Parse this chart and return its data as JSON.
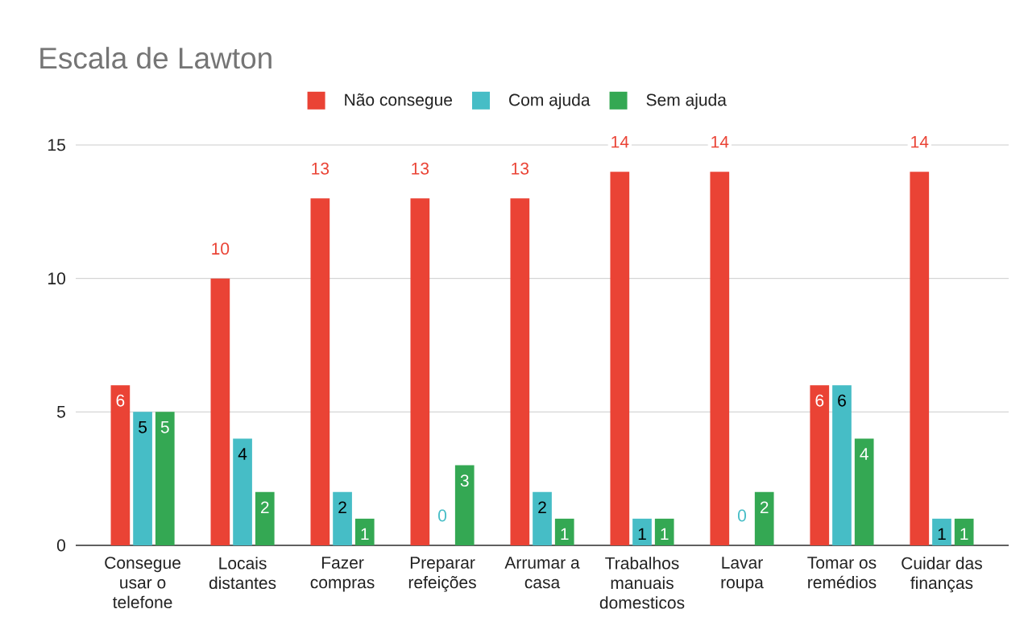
{
  "chart_data": {
    "type": "bar",
    "title": "Escala de Lawton",
    "categories": [
      "Consegue usar o telefone",
      "Locais distantes",
      "Fazer compras",
      "Preparar refeições",
      "Arrumar a casa",
      "Trabalhos manuais domesticos",
      "Lavar roupa",
      "Tomar os remédios",
      "Cuidar das finanças"
    ],
    "series": [
      {
        "name": "Não consegue",
        "color": "#ea4335",
        "values": [
          6,
          10,
          13,
          13,
          13,
          14,
          14,
          6,
          14
        ]
      },
      {
        "name": "Com ajuda",
        "color": "#46bdc6",
        "values": [
          5,
          4,
          2,
          0,
          2,
          1,
          0,
          6,
          1
        ]
      },
      {
        "name": "Sem ajuda",
        "color": "#34a853",
        "values": [
          5,
          2,
          1,
          3,
          1,
          1,
          2,
          4,
          1
        ]
      }
    ],
    "ylim": [
      0,
      15
    ],
    "yticks": [
      0,
      5,
      10,
      15
    ],
    "grid": "y",
    "legend": "top",
    "data_labels": true
  }
}
